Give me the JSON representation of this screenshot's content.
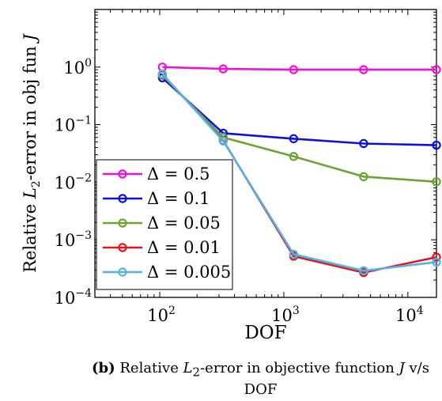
{
  "chart_data": {
    "type": "line",
    "xlabel": "DOF",
    "ylabel_parts": {
      "pre": "Relative ",
      "sym": "L",
      "sub": "2",
      "post": "-error in obj fun ",
      "var": "J"
    },
    "xscale": "log",
    "yscale": "log",
    "xlim": [
      30,
      17000
    ],
    "ylim": [
      0.0001,
      10
    ],
    "x_ticks": [
      {
        "value": 100,
        "base": "10",
        "exp": "2"
      },
      {
        "value": 1000,
        "base": "10",
        "exp": "3"
      },
      {
        "value": 10000,
        "base": "10",
        "exp": "4"
      }
    ],
    "y_ticks": [
      {
        "value": 1,
        "base": "10",
        "exp": "0"
      },
      {
        "value": 0.1,
        "base": "10",
        "exp": "−1"
      },
      {
        "value": 0.01,
        "base": "10",
        "exp": "−2"
      },
      {
        "value": 0.001,
        "base": "10",
        "exp": "−3"
      },
      {
        "value": 0.0001,
        "base": "10",
        "exp": "−4"
      }
    ],
    "grid": false,
    "legend_position": "left",
    "x": [
      105,
      325,
      1200,
      4400,
      17000
    ],
    "series": [
      {
        "name": "Δ = 0.5",
        "color": "#ee11dd",
        "values": [
          1.0,
          0.93,
          0.9,
          0.9,
          0.9
        ]
      },
      {
        "name": "Δ = 0.1",
        "color": "#0b13d8",
        "values": [
          0.65,
          0.071,
          0.057,
          0.047,
          0.044
        ]
      },
      {
        "name": "Δ = 0.05",
        "color": "#6aa532",
        "values": [
          0.72,
          0.06,
          0.028,
          0.0125,
          0.0102
        ]
      },
      {
        "name": "Δ = 0.01",
        "color": "#e2151b",
        "values": [
          0.75,
          0.053,
          0.00052,
          0.00027,
          0.0005
        ]
      },
      {
        "name": "Δ = 0.005",
        "color": "#55b2e6",
        "values": [
          0.76,
          0.052,
          0.00056,
          0.00029,
          0.00041
        ]
      }
    ]
  },
  "caption": {
    "label": "(b)",
    "pre": " Relative ",
    "sym": "L",
    "sub": "2",
    "mid": "-error in objective function ",
    "var": "J",
    "post": " v/s",
    "line2": "DOF"
  }
}
